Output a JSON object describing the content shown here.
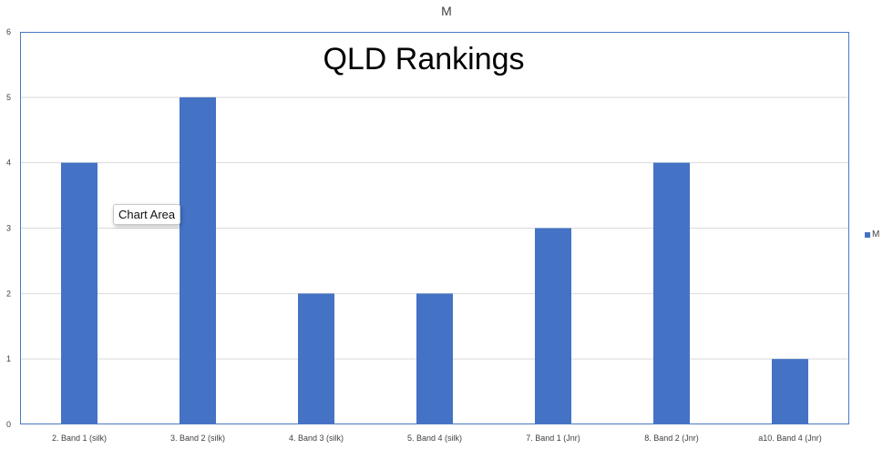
{
  "chart_data": {
    "type": "bar",
    "title": "QLD Rankings",
    "top_label": "M",
    "categories": [
      "2. Band 1 (silk)",
      "3. Band 2 (silk)",
      "4. Band 3 (silk)",
      "5. Band 4 (silk)",
      "7. Band 1 (Jnr)",
      "8. Band 2 (Jnr)",
      "a10. Band 4 (Jnr)"
    ],
    "series": [
      {
        "name": "M",
        "values": [
          4,
          5,
          2,
          2,
          3,
          4,
          1
        ],
        "color": "#4472c4"
      }
    ],
    "ylim": [
      0,
      6
    ],
    "yticks": [
      0,
      1,
      2,
      3,
      4,
      5,
      6
    ],
    "grid": true,
    "legend_position": "right"
  },
  "tooltip": {
    "label": "Chart Area"
  }
}
